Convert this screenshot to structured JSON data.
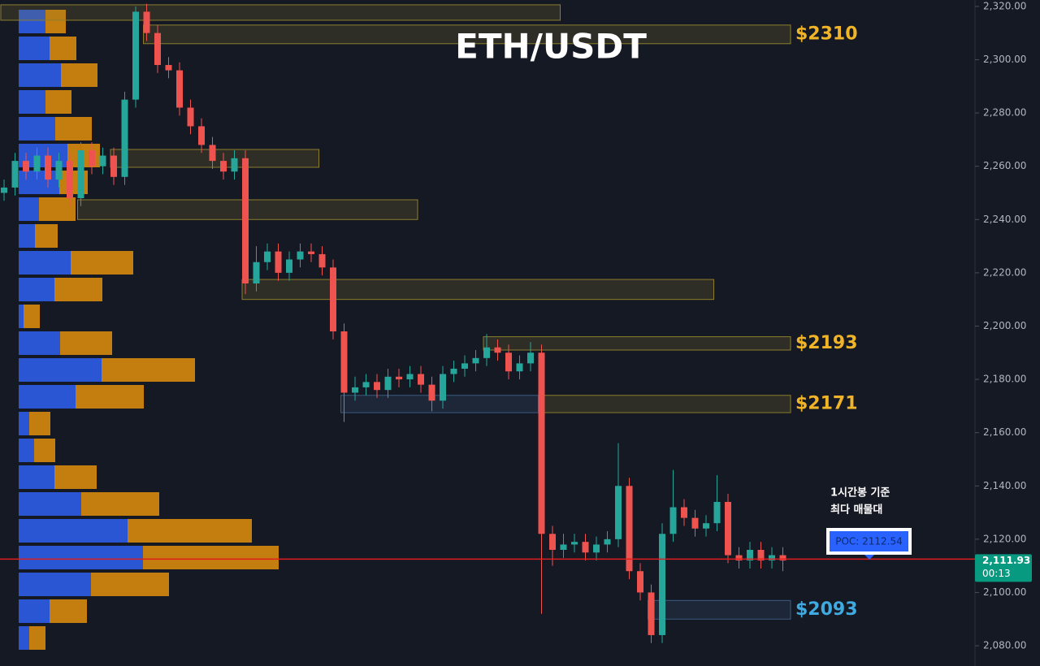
{
  "chart_data": [
    {
      "type": "candlestick",
      "title": "ETH/USDT",
      "open": [
        2250,
        2252,
        2262,
        2258,
        2264,
        2255,
        2262,
        2248,
        2266,
        2260,
        2264,
        2256,
        2285,
        2318,
        2310,
        2298,
        2296,
        2282,
        2275,
        2268,
        2262,
        2258,
        2263,
        2216,
        2224,
        2228,
        2220,
        2225,
        2228,
        2227,
        2222,
        2198,
        2175,
        2177,
        2179,
        2176,
        2181,
        2180,
        2182,
        2178,
        2172,
        2182,
        2184,
        2186,
        2188,
        2192,
        2190,
        2183,
        2186,
        2190,
        2122,
        2116,
        2118,
        2119,
        2115,
        2118,
        2120,
        2140,
        2108,
        2100,
        2084,
        2122,
        2132,
        2128,
        2124,
        2126,
        2134,
        2114,
        2112,
        2116,
        2112,
        2114
      ],
      "high": [
        2255,
        2265,
        2265,
        2267,
        2267,
        2265,
        2265,
        2269,
        2269,
        2267,
        2267,
        2288,
        2320,
        2321,
        2313,
        2301,
        2299,
        2285,
        2278,
        2271,
        2265,
        2266,
        2266,
        2230,
        2231,
        2231,
        2228,
        2231,
        2231,
        2230,
        2225,
        2201,
        2181,
        2182,
        2182,
        2184,
        2184,
        2185,
        2185,
        2181,
        2185,
        2187,
        2189,
        2191,
        2197,
        2195,
        2193,
        2189,
        2194,
        2193,
        2125,
        2122,
        2122,
        2122,
        2121,
        2123,
        2156,
        2143,
        2111,
        2103,
        2126,
        2146,
        2135,
        2131,
        2129,
        2144,
        2137,
        2117,
        2119,
        2119,
        2117,
        2117
      ],
      "low": [
        2247,
        2249,
        2255,
        2255,
        2252,
        2252,
        2245,
        2245,
        2257,
        2257,
        2253,
        2253,
        2282,
        2307,
        2295,
        2293,
        2279,
        2272,
        2265,
        2259,
        2255,
        2255,
        2212,
        2213,
        2221,
        2217,
        2217,
        2222,
        2224,
        2219,
        2195,
        2164,
        2172,
        2174,
        2173,
        2173,
        2177,
        2177,
        2175,
        2168,
        2169,
        2179,
        2181,
        2183,
        2185,
        2187,
        2180,
        2180,
        2183,
        2092,
        2110,
        2113,
        2115,
        2112,
        2112,
        2115,
        2117,
        2105,
        2097,
        2081,
        2081,
        2119,
        2125,
        2121,
        2121,
        2123,
        2111,
        2109,
        2109,
        2109,
        2109,
        2108
      ],
      "close": [
        2252,
        2262,
        2258,
        2264,
        2255,
        2262,
        2248,
        2266,
        2260,
        2264,
        2256,
        2285,
        2318,
        2310,
        2298,
        2296,
        2282,
        2275,
        2268,
        2262,
        2258,
        2263,
        2216,
        2224,
        2228,
        2220,
        2225,
        2228,
        2227,
        2222,
        2198,
        2175,
        2177,
        2179,
        2176,
        2181,
        2180,
        2182,
        2178,
        2172,
        2182,
        2184,
        2186,
        2188,
        2192,
        2190,
        2183,
        2186,
        2190,
        2122,
        2116,
        2118,
        2119,
        2115,
        2118,
        2120,
        2140,
        2108,
        2100,
        2084,
        2122,
        2132,
        2128,
        2124,
        2126,
        2134,
        2114,
        2112,
        2116,
        2112,
        2114,
        2112
      ],
      "up_color": "#26a69a",
      "down_color": "#ef5350",
      "ylim": [
        2072.4,
        2322.4
      ],
      "yticks": [
        {
          "value": 2080,
          "label": "2,080.00"
        },
        {
          "value": 2100,
          "label": "2,100.00"
        },
        {
          "value": 2120,
          "label": "2,120.00"
        },
        {
          "value": 2140,
          "label": "2,140.00"
        },
        {
          "value": 2160,
          "label": "2,160.00"
        },
        {
          "value": 2180,
          "label": "2,180.00"
        },
        {
          "value": 2200,
          "label": "2,200.00"
        },
        {
          "value": 2220,
          "label": "2,220.00"
        },
        {
          "value": 2240,
          "label": "2,240.00"
        },
        {
          "value": 2260,
          "label": "2,260.00"
        },
        {
          "value": 2280,
          "label": "2,280.00"
        },
        {
          "value": 2300,
          "label": "2,300.00"
        },
        {
          "value": 2320,
          "label": "2,320.00"
        }
      ],
      "grid": false,
      "zones": [
        {
          "from": 0,
          "to": 51,
          "low": 2314.8,
          "high": 2320.6,
          "color": "#8c7d2c"
        },
        {
          "from": 13,
          "to": 72,
          "low": 2306,
          "high": 2313,
          "color": "#8c7d2c",
          "label": "$2310",
          "label_color": "#f0b429"
        },
        {
          "from": 10,
          "to": 29,
          "low": 2259.6,
          "high": 2266.3,
          "color": "#8c7d2c"
        },
        {
          "from": 7,
          "to": 38,
          "low": 2240,
          "high": 2247.4,
          "color": "#8c7d2c"
        },
        {
          "from": 22,
          "to": 65,
          "low": 2210,
          "high": 2217.5,
          "color": "#8c7d2c"
        },
        {
          "from": 44,
          "to": 72,
          "low": 2191,
          "high": 2196,
          "color": "#8c7d2c",
          "label": "$2193",
          "label_color": "#f0b429"
        },
        {
          "from": 49,
          "to": 72,
          "low": 2167.5,
          "high": 2174,
          "color": "#8c7d2c",
          "label": "$2171",
          "label_color": "#f0b429"
        },
        {
          "from": 31,
          "to": 49,
          "low": 2167.5,
          "high": 2174,
          "color": "#3a5a80"
        },
        {
          "from": 59,
          "to": 72,
          "low": 2090,
          "high": 2097,
          "color": "#3a5a80",
          "label": "$2093",
          "label_color": "#3fa9e0"
        }
      ],
      "poc": {
        "value": 2112.54,
        "label": "POC: 2112.54",
        "color": "#e01e1e"
      },
      "note": [
        "1시간봉 기준",
        "최다 매물대"
      ],
      "last_price": {
        "value": 2111.93,
        "label": "2,111.93",
        "countdown": "00:13",
        "color": "#089981"
      }
    },
    {
      "type": "bar",
      "orientation": "horizontal",
      "stacked": true,
      "categories": [
        null,
        null,
        null,
        null,
        null,
        null,
        null,
        null,
        null,
        null,
        null,
        null,
        null,
        null,
        null,
        null,
        null,
        null,
        null,
        null,
        null,
        null,
        null,
        null
      ],
      "series": [
        {
          "color": "#2d5be3",
          "values": [
            33,
            38,
            52,
            33,
            45,
            60,
            50,
            25,
            20,
            64,
            44,
            6,
            51,
            102,
            70,
            13,
            19,
            44,
            77,
            134,
            153,
            89,
            38,
            13
          ]
        },
        {
          "color": "#d4870e",
          "values": [
            25,
            33,
            45,
            32,
            45,
            40,
            35,
            45,
            28,
            77,
            59,
            20,
            64,
            115,
            84,
            26,
            26,
            52,
            96,
            153,
            167,
            96,
            46,
            20
          ]
        }
      ]
    }
  ]
}
